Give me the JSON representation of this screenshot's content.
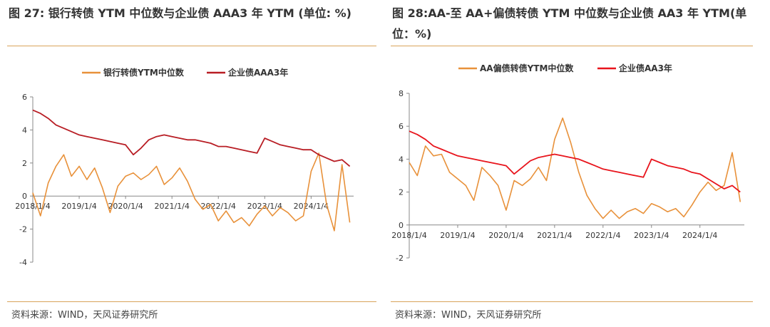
{
  "source_label": "资料来源：WIND，天风证券研究所",
  "chart_data": [
    {
      "type": "line",
      "title": "图 27: 银行转债 YTM 中位数与企业债 AAA3 年 YTM (单位: %)",
      "xlabel": "",
      "ylabel": "",
      "ylim": [
        -4,
        6
      ],
      "yticks": [
        -4,
        -2,
        0,
        2,
        4,
        6
      ],
      "xticks": [
        "2018/1/4",
        "2019/1/4",
        "2020/1/4",
        "2021/1/4",
        "2022/1/4",
        "2023/1/4",
        "2024/1/4"
      ],
      "x_axis_at_zero": true,
      "legend_position": "top",
      "grid": false,
      "x": [
        "2018-01",
        "2018-03",
        "2018-05",
        "2018-07",
        "2018-09",
        "2018-11",
        "2019-01",
        "2019-03",
        "2019-05",
        "2019-07",
        "2019-09",
        "2019-11",
        "2020-01",
        "2020-03",
        "2020-05",
        "2020-07",
        "2020-09",
        "2020-11",
        "2021-01",
        "2021-03",
        "2021-05",
        "2021-07",
        "2021-09",
        "2021-11",
        "2022-01",
        "2022-03",
        "2022-05",
        "2022-07",
        "2022-09",
        "2022-11",
        "2023-01",
        "2023-03",
        "2023-05",
        "2023-07",
        "2023-09",
        "2023-11",
        "2024-01",
        "2024-03",
        "2024-05",
        "2024-07",
        "2024-09",
        "2024-11"
      ],
      "series": [
        {
          "name": "银行转债YTM中位数",
          "color": "#e8913a",
          "values": [
            0.2,
            -1.2,
            0.8,
            1.8,
            2.5,
            1.2,
            1.8,
            1.0,
            1.7,
            0.5,
            -1.0,
            0.6,
            1.2,
            1.4,
            1.0,
            1.3,
            1.8,
            0.7,
            1.1,
            1.7,
            0.9,
            -0.2,
            -0.8,
            -0.5,
            -1.5,
            -0.9,
            -1.6,
            -1.3,
            -1.8,
            -1.1,
            -0.6,
            -1.2,
            -0.7,
            -1.0,
            -1.5,
            -1.2,
            1.5,
            2.6,
            -0.5,
            -2.1,
            1.9,
            -1.6
          ]
        },
        {
          "name": "企业债AAA3年",
          "color": "#b81d24",
          "values": [
            5.2,
            5.0,
            4.7,
            4.3,
            4.1,
            3.9,
            3.7,
            3.6,
            3.5,
            3.4,
            3.3,
            3.2,
            3.1,
            2.5,
            2.9,
            3.4,
            3.6,
            3.7,
            3.6,
            3.5,
            3.4,
            3.4,
            3.3,
            3.2,
            3.0,
            3.0,
            2.9,
            2.8,
            2.7,
            2.6,
            3.5,
            3.3,
            3.1,
            3.0,
            2.9,
            2.8,
            2.8,
            2.5,
            2.3,
            2.1,
            2.2,
            1.8
          ]
        }
      ]
    },
    {
      "type": "line",
      "title": "图 28:AA-至 AA+偏债转债 YTM 中位数与企业债 AA3 年 YTM(单位：%)",
      "xlabel": "",
      "ylabel": "",
      "ylim": [
        -2,
        8
      ],
      "yticks": [
        -2,
        0,
        2,
        4,
        6,
        8
      ],
      "xticks": [
        "2018/1/4",
        "2019/1/4",
        "2020/1/4",
        "2021/1/4",
        "2022/1/4",
        "2023/1/4",
        "2024/1/4"
      ],
      "x_axis_at_zero": true,
      "legend_position": "top",
      "grid": false,
      "x": [
        "2018-01",
        "2018-03",
        "2018-05",
        "2018-07",
        "2018-09",
        "2018-11",
        "2019-01",
        "2019-03",
        "2019-05",
        "2019-07",
        "2019-09",
        "2019-11",
        "2020-01",
        "2020-03",
        "2020-05",
        "2020-07",
        "2020-09",
        "2020-11",
        "2021-01",
        "2021-03",
        "2021-05",
        "2021-07",
        "2021-09",
        "2021-11",
        "2022-01",
        "2022-03",
        "2022-05",
        "2022-07",
        "2022-09",
        "2022-11",
        "2023-01",
        "2023-03",
        "2023-05",
        "2023-07",
        "2023-09",
        "2023-11",
        "2024-01",
        "2024-03",
        "2024-05",
        "2024-07",
        "2024-09",
        "2024-11"
      ],
      "series": [
        {
          "name": "AA偏债转债YTM中位数",
          "color": "#e8913a",
          "values": [
            3.8,
            3.0,
            4.8,
            4.2,
            4.3,
            3.2,
            2.8,
            2.4,
            1.5,
            3.5,
            3.0,
            2.4,
            0.9,
            2.7,
            2.4,
            2.8,
            3.5,
            2.7,
            5.2,
            6.5,
            5.0,
            3.2,
            1.8,
            1.0,
            0.4,
            0.9,
            0.4,
            0.8,
            1.0,
            0.7,
            1.3,
            1.1,
            0.8,
            1.0,
            0.5,
            1.2,
            2.0,
            2.6,
            2.1,
            2.4,
            4.4,
            1.4
          ]
        },
        {
          "name": "企业债AA3年",
          "color": "#e8141c",
          "values": [
            5.7,
            5.5,
            5.2,
            4.8,
            4.6,
            4.4,
            4.2,
            4.1,
            4.0,
            3.9,
            3.8,
            3.7,
            3.6,
            3.1,
            3.5,
            3.9,
            4.1,
            4.2,
            4.3,
            4.2,
            4.1,
            4.0,
            3.8,
            3.6,
            3.4,
            3.3,
            3.2,
            3.1,
            3.0,
            2.9,
            4.0,
            3.8,
            3.6,
            3.5,
            3.4,
            3.2,
            3.1,
            2.8,
            2.5,
            2.2,
            2.4,
            2.0
          ]
        }
      ]
    }
  ]
}
